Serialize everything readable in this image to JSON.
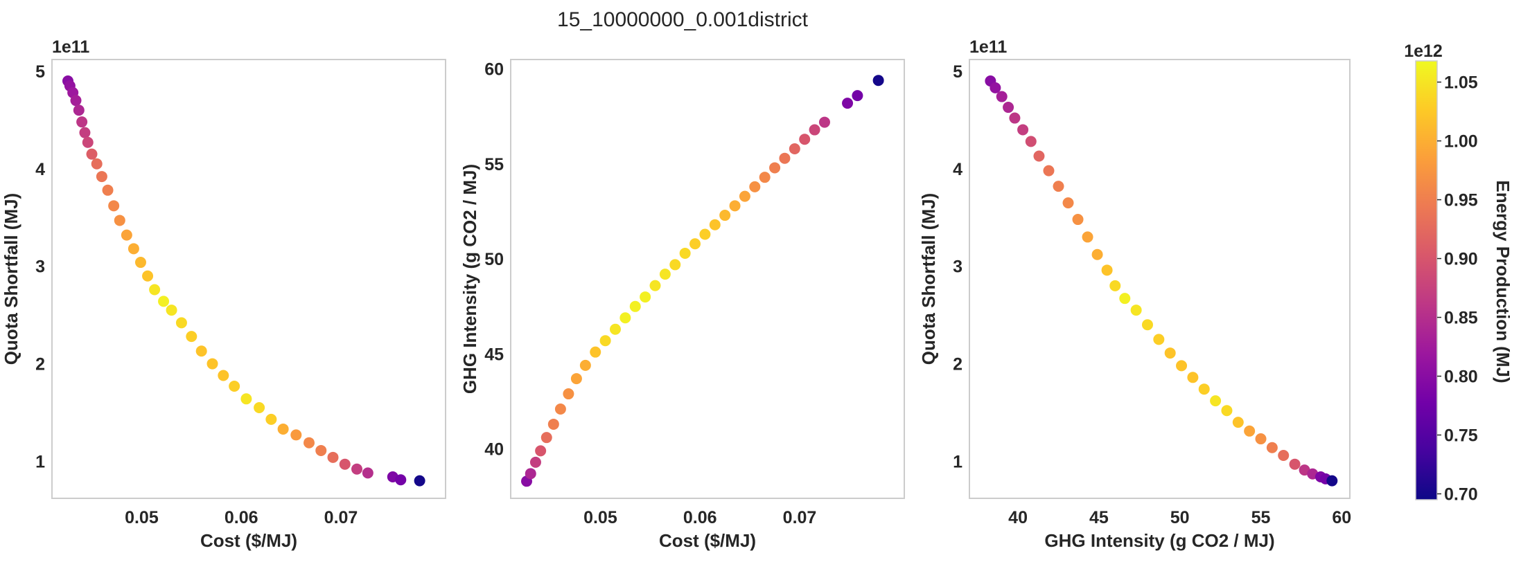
{
  "figure": {
    "suptitle": "15_10000000_0.001district"
  },
  "colorbar": {
    "label": "Energy Production (MJ)",
    "offset_label": "1e12",
    "min": 0.695,
    "max": 1.068,
    "ticks": [
      "0.70",
      "0.75",
      "0.80",
      "0.85",
      "0.90",
      "0.95",
      "1.00",
      "1.05"
    ],
    "colormap": "plasma",
    "colormap_stops": [
      "#0d0887",
      "#46039f",
      "#7201a8",
      "#9c179e",
      "#bd3786",
      "#d8576b",
      "#ed7953",
      "#fb9f3a",
      "#fdca26",
      "#f0f921"
    ]
  },
  "chart_data": [
    {
      "type": "scatter",
      "title": "",
      "xlabel": "Cost ($/MJ)",
      "ylabel": "Quota Shortfall (MJ)",
      "y_offset_label": "1e11",
      "xlim": [
        0.041,
        0.0805
      ],
      "ylim": [
        0.62,
        5.12
      ],
      "xticks": [
        "0.05",
        "0.06",
        "0.07"
      ],
      "yticks": [
        "1",
        "2",
        "3",
        "4",
        "5"
      ],
      "grid": false,
      "color_by": "Energy Production (MJ)",
      "points": [
        {
          "x": 0.0426,
          "y": 4.9,
          "c": 0.8
        },
        {
          "x": 0.0428,
          "y": 4.85,
          "c": 0.81
        },
        {
          "x": 0.0431,
          "y": 4.78,
          "c": 0.82
        },
        {
          "x": 0.0434,
          "y": 4.7,
          "c": 0.83
        },
        {
          "x": 0.0437,
          "y": 4.6,
          "c": 0.84
        },
        {
          "x": 0.044,
          "y": 4.48,
          "c": 0.86
        },
        {
          "x": 0.0443,
          "y": 4.37,
          "c": 0.87
        },
        {
          "x": 0.0446,
          "y": 4.27,
          "c": 0.88
        },
        {
          "x": 0.045,
          "y": 4.15,
          "c": 0.91
        },
        {
          "x": 0.0455,
          "y": 4.05,
          "c": 0.93
        },
        {
          "x": 0.046,
          "y": 3.92,
          "c": 0.94
        },
        {
          "x": 0.0466,
          "y": 3.78,
          "c": 0.95
        },
        {
          "x": 0.0472,
          "y": 3.62,
          "c": 0.96
        },
        {
          "x": 0.0478,
          "y": 3.47,
          "c": 0.97
        },
        {
          "x": 0.0485,
          "y": 3.32,
          "c": 0.99
        },
        {
          "x": 0.0492,
          "y": 3.18,
          "c": 1.0
        },
        {
          "x": 0.0499,
          "y": 3.04,
          "c": 1.01
        },
        {
          "x": 0.0506,
          "y": 2.9,
          "c": 1.02
        },
        {
          "x": 0.0513,
          "y": 2.76,
          "c": 1.05
        },
        {
          "x": 0.0522,
          "y": 2.64,
          "c": 1.06
        },
        {
          "x": 0.053,
          "y": 2.55,
          "c": 1.05
        },
        {
          "x": 0.054,
          "y": 2.42,
          "c": 1.04
        },
        {
          "x": 0.055,
          "y": 2.28,
          "c": 1.03
        },
        {
          "x": 0.056,
          "y": 2.13,
          "c": 1.02
        },
        {
          "x": 0.0571,
          "y": 2.0,
          "c": 1.02
        },
        {
          "x": 0.0582,
          "y": 1.88,
          "c": 1.02
        },
        {
          "x": 0.0593,
          "y": 1.77,
          "c": 1.03
        },
        {
          "x": 0.0605,
          "y": 1.64,
          "c": 1.05
        },
        {
          "x": 0.0618,
          "y": 1.55,
          "c": 1.04
        },
        {
          "x": 0.063,
          "y": 1.43,
          "c": 1.03
        },
        {
          "x": 0.0642,
          "y": 1.33,
          "c": 1.0
        },
        {
          "x": 0.0655,
          "y": 1.27,
          "c": 0.98
        },
        {
          "x": 0.0668,
          "y": 1.19,
          "c": 0.96
        },
        {
          "x": 0.068,
          "y": 1.11,
          "c": 0.95
        },
        {
          "x": 0.0692,
          "y": 1.04,
          "c": 0.93
        },
        {
          "x": 0.0704,
          "y": 0.97,
          "c": 0.9
        },
        {
          "x": 0.0716,
          "y": 0.92,
          "c": 0.87
        },
        {
          "x": 0.0727,
          "y": 0.88,
          "c": 0.85
        },
        {
          "x": 0.0752,
          "y": 0.84,
          "c": 0.79
        },
        {
          "x": 0.076,
          "y": 0.81,
          "c": 0.78
        },
        {
          "x": 0.0779,
          "y": 0.8,
          "c": 0.7
        }
      ]
    },
    {
      "type": "scatter",
      "title": "",
      "xlabel": "Cost ($/MJ)",
      "ylabel": "GHG Intensity (g CO2 / MJ)",
      "xlim": [
        0.041,
        0.0805
      ],
      "ylim": [
        37.4,
        60.5
      ],
      "xticks": [
        "0.05",
        "0.06",
        "0.07"
      ],
      "yticks": [
        "40",
        "45",
        "50",
        "55",
        "60"
      ],
      "grid": false,
      "color_by": "Energy Production (MJ)",
      "points": [
        {
          "x": 0.0426,
          "y": 38.3,
          "c": 0.8
        },
        {
          "x": 0.043,
          "y": 38.7,
          "c": 0.84
        },
        {
          "x": 0.0435,
          "y": 39.3,
          "c": 0.87
        },
        {
          "x": 0.044,
          "y": 39.9,
          "c": 0.9
        },
        {
          "x": 0.0446,
          "y": 40.6,
          "c": 0.93
        },
        {
          "x": 0.0453,
          "y": 41.3,
          "c": 0.95
        },
        {
          "x": 0.046,
          "y": 42.1,
          "c": 0.96
        },
        {
          "x": 0.0468,
          "y": 42.9,
          "c": 0.97
        },
        {
          "x": 0.0476,
          "y": 43.7,
          "c": 0.99
        },
        {
          "x": 0.0485,
          "y": 44.4,
          "c": 1.0
        },
        {
          "x": 0.0495,
          "y": 45.1,
          "c": 1.02
        },
        {
          "x": 0.0505,
          "y": 45.7,
          "c": 1.04
        },
        {
          "x": 0.0515,
          "y": 46.3,
          "c": 1.05
        },
        {
          "x": 0.0525,
          "y": 46.9,
          "c": 1.06
        },
        {
          "x": 0.0535,
          "y": 47.5,
          "c": 1.06
        },
        {
          "x": 0.0545,
          "y": 48.0,
          "c": 1.06
        },
        {
          "x": 0.0555,
          "y": 48.6,
          "c": 1.05
        },
        {
          "x": 0.0565,
          "y": 49.2,
          "c": 1.05
        },
        {
          "x": 0.0575,
          "y": 49.7,
          "c": 1.04
        },
        {
          "x": 0.0585,
          "y": 50.3,
          "c": 1.04
        },
        {
          "x": 0.0595,
          "y": 50.8,
          "c": 1.03
        },
        {
          "x": 0.0605,
          "y": 51.3,
          "c": 1.03
        },
        {
          "x": 0.0615,
          "y": 51.8,
          "c": 1.02
        },
        {
          "x": 0.0625,
          "y": 52.3,
          "c": 1.01
        },
        {
          "x": 0.0635,
          "y": 52.8,
          "c": 1.0
        },
        {
          "x": 0.0645,
          "y": 53.3,
          "c": 0.99
        },
        {
          "x": 0.0655,
          "y": 53.8,
          "c": 0.97
        },
        {
          "x": 0.0665,
          "y": 54.3,
          "c": 0.96
        },
        {
          "x": 0.0675,
          "y": 54.8,
          "c": 0.95
        },
        {
          "x": 0.0685,
          "y": 55.3,
          "c": 0.94
        },
        {
          "x": 0.0695,
          "y": 55.8,
          "c": 0.92
        },
        {
          "x": 0.0705,
          "y": 56.3,
          "c": 0.9
        },
        {
          "x": 0.0715,
          "y": 56.8,
          "c": 0.88
        },
        {
          "x": 0.0725,
          "y": 57.2,
          "c": 0.86
        },
        {
          "x": 0.0748,
          "y": 58.2,
          "c": 0.79
        },
        {
          "x": 0.0758,
          "y": 58.6,
          "c": 0.78
        },
        {
          "x": 0.0779,
          "y": 59.4,
          "c": 0.7
        }
      ]
    },
    {
      "type": "scatter",
      "title": "",
      "xlabel": "GHG Intensity (g CO2 / MJ)",
      "ylabel": "Quota Shortfall (MJ)",
      "y_offset_label": "1e11",
      "xlim": [
        37.0,
        60.5
      ],
      "ylim": [
        0.62,
        5.12
      ],
      "xticks": [
        "40",
        "45",
        "50",
        "55",
        "60"
      ],
      "yticks": [
        "1",
        "2",
        "3",
        "4",
        "5"
      ],
      "grid": false,
      "color_by": "Energy Production (MJ)",
      "points": [
        {
          "x": 38.3,
          "y": 4.9,
          "c": 0.8
        },
        {
          "x": 38.6,
          "y": 4.83,
          "c": 0.81
        },
        {
          "x": 39.0,
          "y": 4.74,
          "c": 0.83
        },
        {
          "x": 39.4,
          "y": 4.63,
          "c": 0.84
        },
        {
          "x": 39.8,
          "y": 4.52,
          "c": 0.86
        },
        {
          "x": 40.3,
          "y": 4.4,
          "c": 0.87
        },
        {
          "x": 40.8,
          "y": 4.28,
          "c": 0.89
        },
        {
          "x": 41.3,
          "y": 4.13,
          "c": 0.92
        },
        {
          "x": 41.9,
          "y": 3.98,
          "c": 0.94
        },
        {
          "x": 42.5,
          "y": 3.82,
          "c": 0.95
        },
        {
          "x": 43.1,
          "y": 3.65,
          "c": 0.96
        },
        {
          "x": 43.7,
          "y": 3.48,
          "c": 0.97
        },
        {
          "x": 44.3,
          "y": 3.3,
          "c": 0.99
        },
        {
          "x": 44.9,
          "y": 3.12,
          "c": 1.0
        },
        {
          "x": 45.5,
          "y": 2.96,
          "c": 1.02
        },
        {
          "x": 46.0,
          "y": 2.8,
          "c": 1.04
        },
        {
          "x": 46.6,
          "y": 2.67,
          "c": 1.06
        },
        {
          "x": 47.3,
          "y": 2.55,
          "c": 1.05
        },
        {
          "x": 48.0,
          "y": 2.4,
          "c": 1.04
        },
        {
          "x": 48.7,
          "y": 2.25,
          "c": 1.03
        },
        {
          "x": 49.4,
          "y": 2.11,
          "c": 1.02
        },
        {
          "x": 50.1,
          "y": 1.98,
          "c": 1.02
        },
        {
          "x": 50.8,
          "y": 1.86,
          "c": 1.02
        },
        {
          "x": 51.5,
          "y": 1.74,
          "c": 1.03
        },
        {
          "x": 52.2,
          "y": 1.62,
          "c": 1.05
        },
        {
          "x": 52.9,
          "y": 1.52,
          "c": 1.04
        },
        {
          "x": 53.6,
          "y": 1.4,
          "c": 1.02
        },
        {
          "x": 54.3,
          "y": 1.31,
          "c": 0.99
        },
        {
          "x": 55.0,
          "y": 1.23,
          "c": 0.97
        },
        {
          "x": 55.7,
          "y": 1.14,
          "c": 0.95
        },
        {
          "x": 56.4,
          "y": 1.06,
          "c": 0.93
        },
        {
          "x": 57.1,
          "y": 0.97,
          "c": 0.9
        },
        {
          "x": 57.7,
          "y": 0.91,
          "c": 0.86
        },
        {
          "x": 58.2,
          "y": 0.87,
          "c": 0.84
        },
        {
          "x": 58.7,
          "y": 0.84,
          "c": 0.79
        },
        {
          "x": 59.0,
          "y": 0.82,
          "c": 0.78
        },
        {
          "x": 59.4,
          "y": 0.8,
          "c": 0.7
        }
      ]
    }
  ]
}
